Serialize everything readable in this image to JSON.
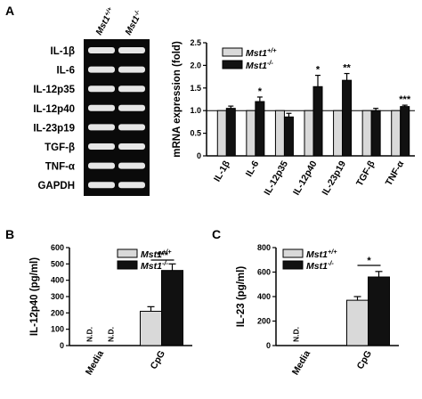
{
  "panels": {
    "a": "A",
    "b": "B",
    "c": "C"
  },
  "legend": {
    "wt": "Mst1+/+",
    "ko": "Mst1-/-",
    "wt_color": "#d9d9d9",
    "ko_color": "#111111"
  },
  "gel": {
    "header_wt": "Mst1+/+",
    "header_ko": "Mst1-/-",
    "rows": [
      "IL-1β",
      "IL-6",
      "IL-12p35",
      "IL-12p40",
      "IL-23p19",
      "TGF-β",
      "TNF-α",
      "GAPDH"
    ]
  },
  "chart_data": [
    {
      "panel": "A",
      "type": "bar",
      "ylabel": "mRNA expression (fold)",
      "ylim": [
        0,
        2.5
      ],
      "yticks": [
        "0",
        "0.5",
        "1.0",
        "1.5",
        "2.0",
        "2.5"
      ],
      "categories": [
        "IL-1β",
        "IL-6",
        "IL-12p35",
        "IL-12p40",
        "IL-23p19",
        "TGF-β",
        "TNF-α"
      ],
      "series": [
        {
          "name": "Mst1+/+",
          "values": [
            1,
            1,
            1,
            1,
            1,
            1,
            1
          ],
          "errors": [
            0,
            0,
            0,
            0,
            0,
            0,
            0
          ]
        },
        {
          "name": "Mst1-/-",
          "values": [
            1.05,
            1.2,
            0.86,
            1.53,
            1.67,
            1.0,
            1.09
          ],
          "errors": [
            0.05,
            0.1,
            0.08,
            0.25,
            0.15,
            0.05,
            0.03
          ]
        }
      ],
      "significance": [
        "",
        "*",
        "",
        "*",
        "**",
        "",
        "***"
      ],
      "reference_line": 1.0
    },
    {
      "panel": "B",
      "type": "bar",
      "ylabel": "IL-12p40 (pg/ml)",
      "ylim": [
        0,
        600
      ],
      "yticks": [
        "0",
        "100",
        "200",
        "300",
        "400",
        "500",
        "600"
      ],
      "categories": [
        "Media",
        "CpG"
      ],
      "series": [
        {
          "name": "Mst1+/+",
          "values": [
            0,
            210
          ],
          "errors": [
            0,
            28
          ],
          "labels": [
            "N.D.",
            ""
          ]
        },
        {
          "name": "Mst1-/-",
          "values": [
            0,
            460
          ],
          "errors": [
            0,
            40
          ],
          "labels": [
            "N.D.",
            ""
          ]
        }
      ],
      "significance": [
        "",
        "***"
      ]
    },
    {
      "panel": "C",
      "type": "bar",
      "ylabel": "IL-23 (pg/ml)",
      "ylim": [
        0,
        800
      ],
      "yticks": [
        "0",
        "200",
        "400",
        "600",
        "800"
      ],
      "categories": [
        "Media",
        "CpG"
      ],
      "series": [
        {
          "name": "Mst1+/+",
          "values": [
            0,
            370
          ],
          "errors": [
            0,
            30
          ],
          "labels": [
            "N.D.",
            ""
          ]
        },
        {
          "name": "Mst1-/-",
          "values": [
            0,
            560
          ],
          "errors": [
            0,
            45
          ],
          "labels": [
            "",
            ""
          ]
        }
      ],
      "significance": [
        "",
        "*"
      ]
    }
  ]
}
